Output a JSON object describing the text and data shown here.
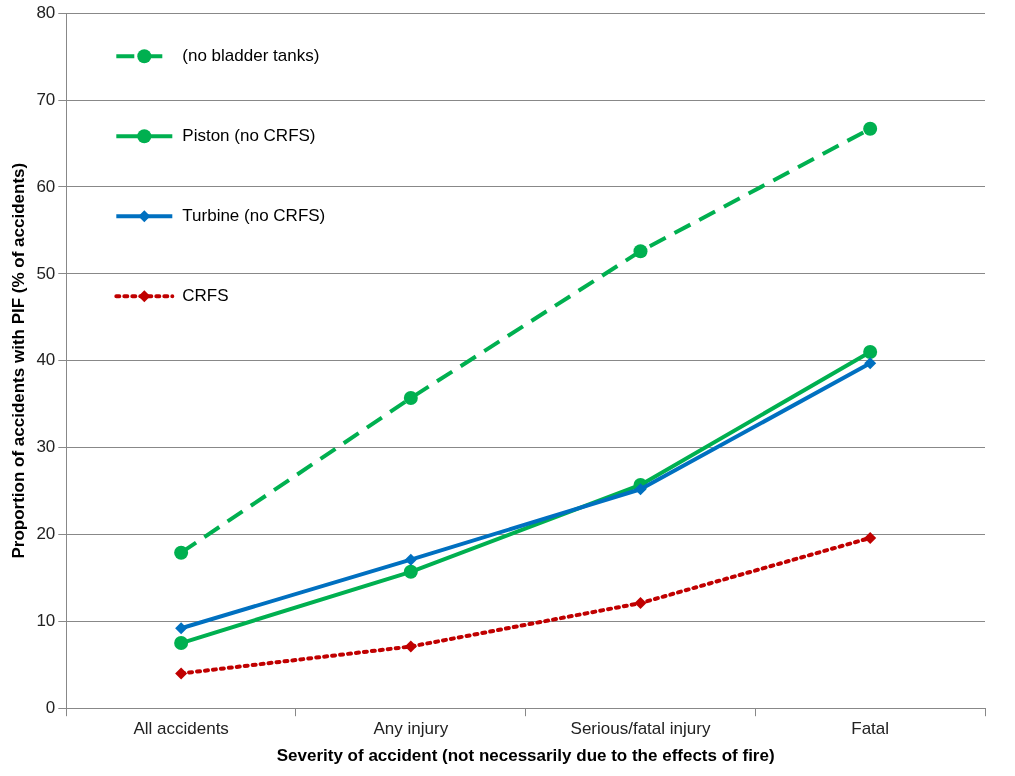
{
  "chart_data": {
    "type": "line",
    "xlabel": "Severity of accident (not necessarily due to the effects of fire)",
    "ylabel": "Proportion of accidents with PIF (% of accidents)",
    "categories": [
      "All accidents",
      "Any injury",
      "Serious/fatal injury",
      "Fatal"
    ],
    "ylim": [
      0,
      80
    ],
    "yticks": [
      0,
      10,
      20,
      30,
      40,
      50,
      60,
      70,
      80
    ],
    "grid": "y",
    "legend": "top left",
    "series": [
      {
        "name": "(no bladder tanks)",
        "color": "#00b050",
        "marker": "circle",
        "line_style": "dashed",
        "values": [
          17.9,
          35.7,
          52.6,
          66.7
        ]
      },
      {
        "name": "Piston (no CRFS)",
        "color": "#00b050",
        "marker": "circle",
        "line_style": "solid",
        "values": [
          7.5,
          15.7,
          25.7,
          41.0
        ]
      },
      {
        "name": "Turbine (no CRFS)",
        "color": "#0070c0",
        "marker": "diamond",
        "line_style": "solid",
        "values": [
          9.2,
          17.1,
          25.2,
          39.7
        ]
      },
      {
        "name": "CRFS",
        "color": "#c00000",
        "marker": "diamond",
        "line_style": "dotted",
        "values": [
          4.0,
          7.1,
          12.1,
          19.6
        ]
      }
    ]
  }
}
